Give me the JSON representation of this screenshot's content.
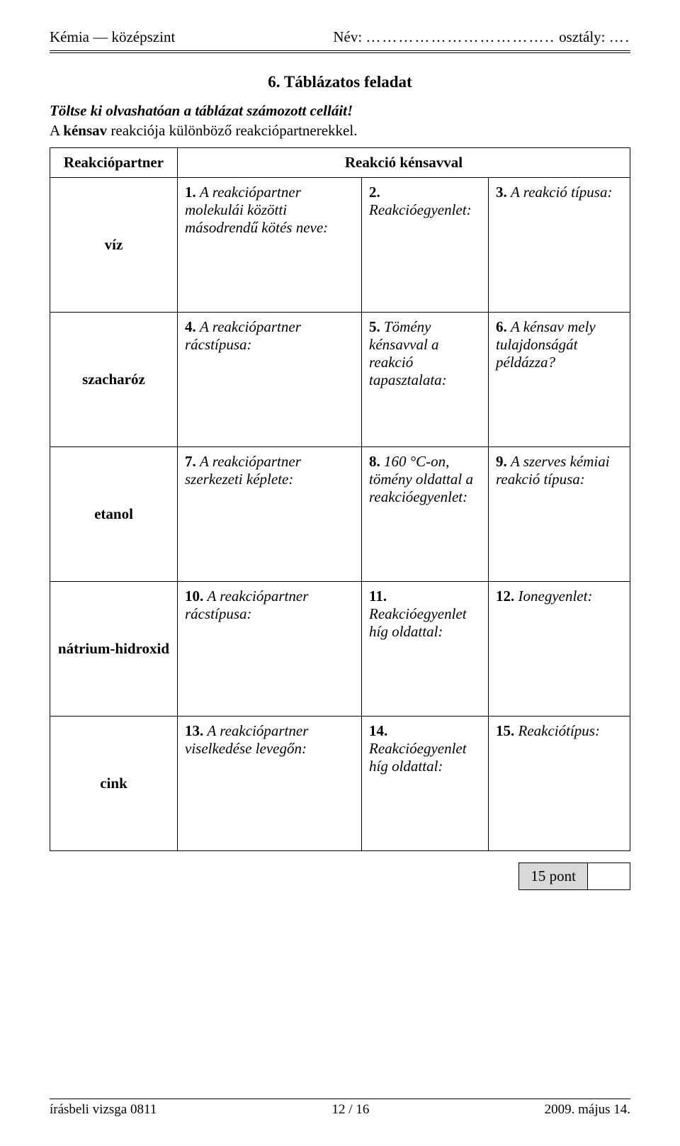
{
  "header": {
    "left": "Kémia — középszint",
    "name_label": "Név:",
    "name_dots": "……………………………..",
    "class_label": "osztály:",
    "class_dots": "…."
  },
  "task": {
    "title": "6. Táblázatos feladat",
    "instr1_italic": "Töltse ki olvashatóan a táblázat számozott celláit!",
    "instr2_prefix": "A ",
    "instr2_bold": "kénsav",
    "instr2_rest": " reakciója különböző reakciópartnerekkel."
  },
  "table": {
    "head_partner": "Reakciópartner",
    "head_reaction": "Reakció kénsavval",
    "rows": [
      {
        "partner": "víz",
        "c1": "1. A reakciópartner molekulái közötti másodrendű kötés neve:",
        "c2": "2. Reakcióegyenlet:",
        "c3": "3. A reakció típusa:"
      },
      {
        "partner": "szacharóz",
        "c1": "4. A reakciópartner rácstípusa:",
        "c2": "5. Tömény kénsavval a reakció tapasztalata:",
        "c3": "6. A kénsav mely tulajdonságát példázza?"
      },
      {
        "partner": "etanol",
        "c1": "7. A reakciópartner szerkezeti képlete:",
        "c2": "8. 160 °C-on, tömény oldattal a reakcióegyenlet:",
        "c3": "9. A szerves kémiai reakció típusa:"
      },
      {
        "partner": "nátrium-hidroxid",
        "c1": "10. A reakciópartner rácstípusa:",
        "c2": "11. Reakcióegyenlet híg oldattal:",
        "c3": "12. Ionegyenlet:"
      },
      {
        "partner": "cink",
        "c1": "13. A reakciópartner viselkedése levegőn:",
        "c2": "14. Reakcióegyenlet híg oldattal:",
        "c3": "15. Reakciótípus:"
      }
    ]
  },
  "score": {
    "label": "15 pont"
  },
  "footer": {
    "left": "írásbeli vizsga 0811",
    "center": "12 / 16",
    "right": "2009. május 14."
  }
}
